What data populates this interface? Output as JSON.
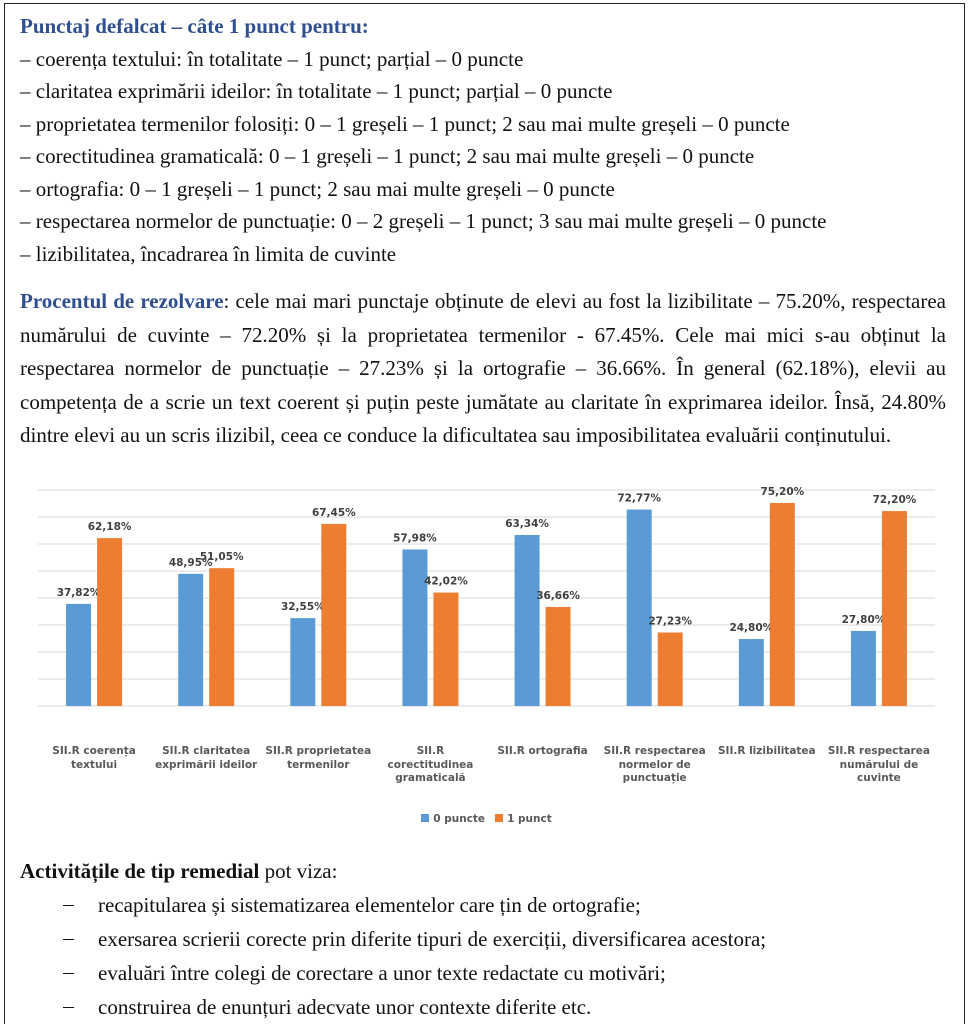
{
  "section1": {
    "heading": "Punctaj defalcat – câte 1 punct pentru:",
    "items": [
      "– coerența textului: în totalitate – 1 punct; parțial – 0 puncte",
      "– claritatea exprimării ideilor: în totalitate – 1 punct; parțial – 0 puncte",
      "– proprietatea termenilor folosiți: 0 – 1 greșeli – 1 punct; 2 sau mai multe greșeli – 0 puncte",
      "– corectitudinea gramaticală: 0 – 1 greșeli – 1 punct; 2 sau mai multe greșeli – 0 puncte",
      "– ortografia: 0 – 1 greșeli – 1 punct; 2 sau mai multe greșeli – 0 puncte",
      "– respectarea normelor de punctuație: 0 – 2 greșeli – 1 punct; 3 sau mai multe greșeli – 0 puncte",
      "– lizibilitatea, încadrarea în limita de cuvinte"
    ]
  },
  "section2": {
    "label": "Procentul de rezolvare",
    "text": ": cele mai mari punctaje obținute de elevi au fost la lizibilitate – 75.20%, respectarea numărului de cuvinte – 72.20% și la proprietatea termenilor - 67.45%. Cele mai mici s-au obținut la respectarea normelor de punctuație – 27.23% și la ortografie – 36.66%. În general (62.18%), elevii au competența de a scrie un text coerent și puțin peste jumătate au claritate în exprimarea ideilor. Însă, 24.80% dintre elevi au un scris ilizibil, ceea ce conduce la dificultatea sau imposibilitatea evaluării conținutului."
  },
  "chart_data": {
    "type": "bar",
    "categories": [
      "SII.R coerența textului",
      "SII.R claritatea exprimării ideilor",
      "SII.R proprietatea termenilor",
      "SII.R corectitudinea gramaticală",
      "SII.R ortografia",
      "SII.R respectarea normelor de punctuație",
      "SII.R lizibilitatea",
      "SII.R respectarea numărului de cuvinte"
    ],
    "series": [
      {
        "name": "0 puncte",
        "color": "#5b9bd5",
        "values": [
          37.82,
          48.95,
          32.55,
          57.98,
          63.34,
          72.77,
          24.8,
          27.8
        ],
        "value_labels": [
          "37,82%",
          "48,95%",
          "32,55%",
          "57,98%",
          "63,34%",
          "72,77%",
          "24,80%",
          "27,80%"
        ]
      },
      {
        "name": "1 punct",
        "color": "#ed7d31",
        "values": [
          62.18,
          51.05,
          67.45,
          42.02,
          36.66,
          27.23,
          75.2,
          72.2
        ],
        "value_labels": [
          "62,18%",
          "51,05%",
          "67,45%",
          "42,02%",
          "36,66%",
          "27,23%",
          "75,20%",
          "72,20%"
        ]
      }
    ],
    "ylim": [
      0,
      80
    ],
    "yticks": [
      0,
      10,
      20,
      30,
      40,
      50,
      60,
      70,
      80
    ],
    "grid": true,
    "legend": "bottom"
  },
  "section3": {
    "label": "Activitățile de tip remedial",
    "text": " pot viza:",
    "items": [
      "recapitularea și sistematizarea elementelor care țin de ortografie;",
      "exersarea scrierii corecte prin diferite tipuri de exerciții, diversificarea acestora;",
      "evaluări între colegi de corectare a unor texte redactate cu motivări;",
      "construirea de enunțuri adecvate unor contexte diferite etc."
    ]
  }
}
